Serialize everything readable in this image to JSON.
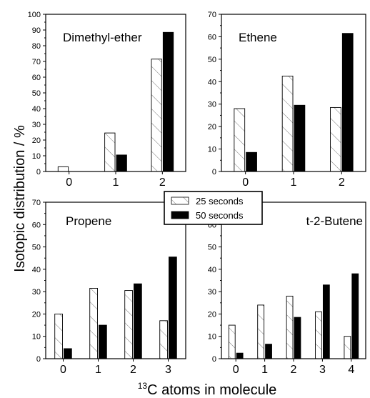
{
  "chart_data": [
    {
      "type": "bar",
      "title": "Dimethyl-ether",
      "categories": [
        "0",
        "1",
        "2"
      ],
      "ylim": [
        0,
        100
      ],
      "yticks": [
        0,
        10,
        20,
        30,
        40,
        50,
        60,
        70,
        80,
        90,
        100
      ],
      "series": [
        {
          "name": "25 seconds",
          "values": [
            3,
            24.5,
            71.5
          ]
        },
        {
          "name": "50 seconds",
          "values": [
            0,
            10.5,
            88.5
          ]
        }
      ]
    },
    {
      "type": "bar",
      "title": "Ethene",
      "categories": [
        "0",
        "1",
        "2"
      ],
      "ylim": [
        0,
        70
      ],
      "yticks": [
        0,
        10,
        20,
        30,
        40,
        50,
        60,
        70
      ],
      "series": [
        {
          "name": "25 seconds",
          "values": [
            28,
            42.5,
            28.5
          ]
        },
        {
          "name": "50 seconds",
          "values": [
            8.5,
            29.5,
            61.5
          ]
        }
      ]
    },
    {
      "type": "bar",
      "title": "Propene",
      "categories": [
        "0",
        "1",
        "2",
        "3"
      ],
      "ylim": [
        0,
        70
      ],
      "yticks": [
        0,
        10,
        20,
        30,
        40,
        50,
        60,
        70
      ],
      "series": [
        {
          "name": "25 seconds",
          "values": [
            20,
            31.5,
            30.5,
            17
          ]
        },
        {
          "name": "50 seconds",
          "values": [
            4.5,
            15,
            33.5,
            45.5
          ]
        }
      ]
    },
    {
      "type": "bar",
      "title": "t-2-Butene",
      "categories": [
        "0",
        "1",
        "2",
        "3",
        "4"
      ],
      "ylim": [
        0,
        70
      ],
      "yticks": [
        0,
        10,
        20,
        30,
        40,
        50,
        60
      ],
      "series": [
        {
          "name": "25 seconds",
          "values": [
            15,
            24,
            28,
            21,
            10
          ]
        },
        {
          "name": "50 seconds",
          "values": [
            2.5,
            6.5,
            18.5,
            33,
            38
          ]
        }
      ]
    }
  ],
  "ylabel": "Isotopic distribution / %",
  "xlabel_prefix": "13",
  "xlabel_text": "C atoms in molecule",
  "legend": {
    "entries": [
      {
        "label": "25 seconds",
        "style": "hatched"
      },
      {
        "label": "50 seconds",
        "style": "solid"
      }
    ],
    "placement": "center"
  }
}
